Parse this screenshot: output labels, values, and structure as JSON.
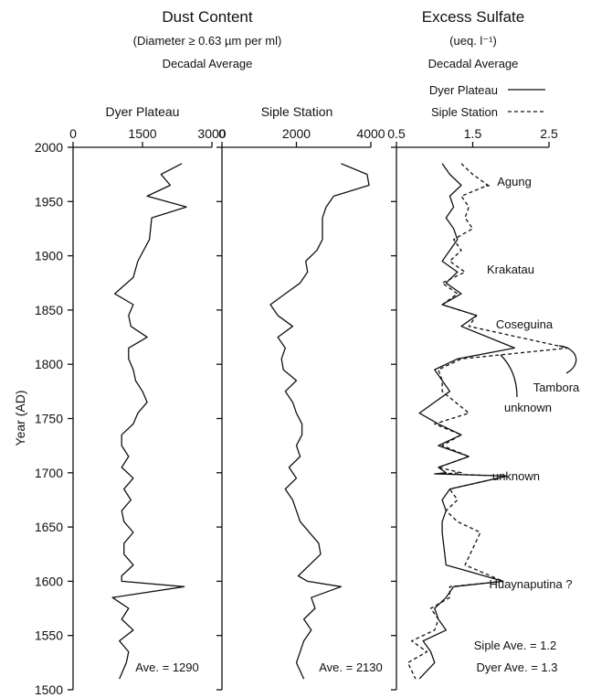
{
  "header": {
    "dust_title": "Dust Content",
    "dust_subtitle": "(Diameter ≥ 0.63 µm per ml)",
    "dust_avg_label": "Decadal Average",
    "sulfate_title": "Excess Sulfate",
    "sulfate_subtitle": "(ueq. l⁻¹)",
    "sulfate_avg_label": "Decadal Average"
  },
  "legend": {
    "dyer": "Dyer Plateau",
    "siple": "Siple Station"
  },
  "chart_data": [
    {
      "type": "line",
      "title": "Dyer Plateau",
      "orientation": "vertical",
      "xlabel": "",
      "ylabel": "Year (AD)",
      "xlim": [
        0,
        3000
      ],
      "ylim": [
        1500,
        2000
      ],
      "xticks": [
        "0",
        "1500",
        "3000"
      ],
      "yticks": [
        "1500",
        "1550",
        "1600",
        "1650",
        "1700",
        "1750",
        "1800",
        "1850",
        "1900",
        "1950",
        "2000"
      ],
      "annotation": "Ave. = 1290",
      "series": [
        {
          "name": "Dyer Plateau",
          "x": [
            2350,
            1900,
            2100,
            1600,
            2450,
            1700,
            1650,
            1400,
            1300,
            900,
            1300,
            1200,
            1250,
            1600,
            1200,
            1200,
            1300,
            1350,
            1500,
            1600,
            1400,
            1300,
            1050,
            1050,
            1200,
            1050,
            1300,
            1100,
            1250,
            1050,
            1100,
            1300,
            1100,
            1100,
            1300,
            1050,
            1050,
            2400,
            850,
            1200,
            1050,
            1300,
            1000,
            1200,
            1150,
            1000
          ],
          "y": [
            1985,
            1975,
            1965,
            1955,
            1945,
            1935,
            1915,
            1895,
            1880,
            1865,
            1855,
            1845,
            1835,
            1825,
            1815,
            1805,
            1795,
            1785,
            1775,
            1765,
            1755,
            1745,
            1735,
            1725,
            1715,
            1705,
            1695,
            1685,
            1675,
            1665,
            1655,
            1645,
            1635,
            1625,
            1615,
            1605,
            1600,
            1595,
            1585,
            1575,
            1565,
            1555,
            1545,
            1535,
            1525,
            1510
          ]
        }
      ]
    },
    {
      "type": "line",
      "title": "Siple Station",
      "orientation": "vertical",
      "xlabel": "",
      "ylabel": "",
      "xlim": [
        0,
        4000
      ],
      "ylim": [
        1500,
        2000
      ],
      "xticks": [
        "0",
        "2000",
        "4000"
      ],
      "yticks": [],
      "annotation": "Ave. = 2130",
      "series": [
        {
          "name": "Siple Station",
          "x": [
            3200,
            3900,
            3950,
            3000,
            2800,
            2700,
            2700,
            2550,
            2250,
            2300,
            2100,
            1700,
            1300,
            1500,
            1900,
            1500,
            1700,
            1600,
            1650,
            2000,
            1700,
            1900,
            2000,
            2150,
            2150,
            2000,
            2100,
            1800,
            2000,
            1700,
            1900,
            2000,
            2100,
            2600,
            2650,
            2050,
            2300,
            3200,
            2400,
            2500,
            2200,
            2400,
            2200,
            2100,
            2000,
            2200
          ],
          "y": [
            1985,
            1975,
            1965,
            1955,
            1945,
            1935,
            1915,
            1905,
            1895,
            1885,
            1875,
            1865,
            1855,
            1845,
            1835,
            1825,
            1815,
            1805,
            1795,
            1785,
            1775,
            1765,
            1755,
            1745,
            1735,
            1725,
            1715,
            1705,
            1695,
            1685,
            1675,
            1665,
            1655,
            1635,
            1625,
            1605,
            1600,
            1595,
            1585,
            1575,
            1565,
            1555,
            1545,
            1535,
            1525,
            1510
          ]
        }
      ]
    },
    {
      "type": "line",
      "title": "Excess Sulfate",
      "orientation": "vertical",
      "xlabel": "",
      "ylabel": "",
      "xlim": [
        0.5,
        2.5
      ],
      "ylim": [
        1500,
        2000
      ],
      "xticks": [
        "0.5",
        "1.5",
        "2.5"
      ],
      "yticks": [],
      "legend": "top-right",
      "annotations": [
        {
          "text": "Agung",
          "year": 1963
        },
        {
          "text": "Krakatau",
          "year": 1885
        },
        {
          "text": "Coseguina",
          "year": 1835
        },
        {
          "text": "Tambora",
          "year": 1815
        },
        {
          "text": "unknown",
          "year": 1809
        },
        {
          "text": "unknown",
          "year": 1697
        },
        {
          "text": "Huaynaputina ?",
          "year": 1600
        },
        {
          "text": "Siple Ave. = 1.2",
          "year": 1535
        },
        {
          "text": "Dyer Ave. = 1.3",
          "year": 1515
        }
      ],
      "series": [
        {
          "name": "Dyer Plateau",
          "style": "solid",
          "x": [
            1.1,
            1.2,
            1.35,
            1.2,
            1.25,
            1.15,
            1.25,
            1.3,
            1.2,
            1.1,
            1.3,
            1.15,
            1.35,
            1.1,
            1.55,
            1.35,
            2.05,
            1.3,
            1.0,
            1.1,
            1.2,
            0.8,
            1.05,
            1.35,
            1.05,
            1.45,
            1.05,
            1.15,
            1.0,
            1.95,
            1.2,
            1.1,
            1.15,
            1.1,
            1.1,
            1.15,
            1.9,
            1.25,
            1.15,
            1.0,
            1.05,
            1.15,
            0.85,
            0.95,
            1.0,
            0.8
          ],
          "y": [
            1985,
            1975,
            1965,
            1955,
            1945,
            1935,
            1925,
            1915,
            1905,
            1895,
            1885,
            1875,
            1865,
            1855,
            1845,
            1835,
            1815,
            1805,
            1795,
            1785,
            1775,
            1755,
            1745,
            1735,
            1725,
            1715,
            1705,
            1700,
            1699,
            1697,
            1685,
            1675,
            1665,
            1655,
            1645,
            1615,
            1600,
            1595,
            1585,
            1575,
            1565,
            1555,
            1545,
            1535,
            1525,
            1510
          ]
        },
        {
          "name": "Siple Station",
          "style": "dashed",
          "x": [
            1.35,
            1.5,
            1.7,
            1.35,
            1.45,
            1.4,
            1.5,
            1.25,
            1.35,
            1.2,
            1.4,
            1.1,
            1.3,
            1.1,
            1.55,
            1.45,
            2.75,
            1.35,
            1.05,
            1.1,
            1.1,
            1.45,
            1.0,
            1.35,
            1.1,
            1.45,
            1.05,
            1.35,
            1.1,
            1.95,
            1.2,
            1.3,
            1.15,
            1.3,
            1.6,
            1.4,
            1.9,
            1.2,
            1.2,
            0.95,
            1.05,
            1.0,
            0.7,
            0.9,
            0.65,
            0.75
          ],
          "y": [
            1985,
            1975,
            1965,
            1955,
            1945,
            1935,
            1925,
            1915,
            1905,
            1895,
            1885,
            1875,
            1865,
            1855,
            1845,
            1835,
            1815,
            1805,
            1795,
            1785,
            1775,
            1755,
            1745,
            1735,
            1725,
            1715,
            1705,
            1700,
            1699,
            1697,
            1685,
            1675,
            1665,
            1655,
            1645,
            1615,
            1600,
            1595,
            1585,
            1575,
            1565,
            1555,
            1545,
            1535,
            1525,
            1510
          ]
        }
      ]
    }
  ]
}
